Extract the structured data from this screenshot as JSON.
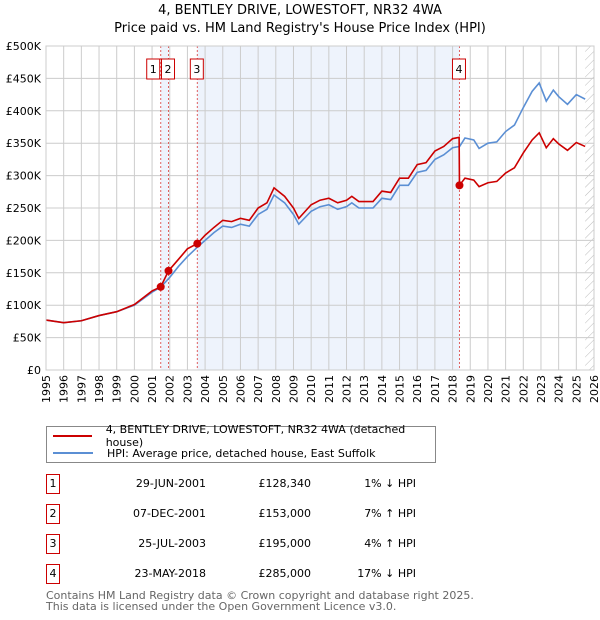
{
  "title": "4, BENTLEY DRIVE, LOWESTOFT, NR32 4WA",
  "subtitle": "Price paid vs. HM Land Registry's House Price Index (HPI)",
  "legend": {
    "property": "4, BENTLEY DRIVE, LOWESTOFT, NR32 4WA (detached house)",
    "hpi": "HPI: Average price, detached house, East Suffolk"
  },
  "colors": {
    "property": "#cc0000",
    "hpi": "#5b8fd4",
    "shade": "#eef3fc"
  },
  "sales": [
    {
      "num": "1",
      "date": "29-JUN-2001",
      "price": "£128,340",
      "hpi": "1% ↓ HPI",
      "x": 2001.49,
      "y": 128.34
    },
    {
      "num": "2",
      "date": "07-DEC-2001",
      "price": "£153,000",
      "hpi": "7% ↑ HPI",
      "x": 2001.93,
      "y": 153
    },
    {
      "num": "3",
      "date": "25-JUL-2003",
      "price": "£195,000",
      "hpi": "4% ↑ HPI",
      "x": 2003.56,
      "y": 195
    },
    {
      "num": "4",
      "date": "23-MAY-2018",
      "price": "£285,000",
      "hpi": "17% ↓ HPI",
      "x": 2018.39,
      "y": 285
    }
  ],
  "footer": [
    "Contains HM Land Registry data © Crown copyright and database right 2025.",
    "This data is licensed under the Open Government Licence v3.0."
  ],
  "chart_data": {
    "type": "line",
    "xlim": [
      1995,
      2026
    ],
    "ylim": [
      0,
      500
    ],
    "yticks": [
      0,
      50,
      100,
      150,
      200,
      250,
      300,
      350,
      400,
      450,
      500
    ],
    "ytick_labels": [
      "£0",
      "£50K",
      "£100K",
      "£150K",
      "£200K",
      "£250K",
      "£300K",
      "£350K",
      "£400K",
      "£450K",
      "£500K"
    ],
    "xticks": [
      1995,
      1996,
      1997,
      1998,
      1999,
      2000,
      2001,
      2002,
      2003,
      2004,
      2005,
      2006,
      2007,
      2008,
      2009,
      2010,
      2011,
      2012,
      2013,
      2014,
      2015,
      2016,
      2017,
      2018,
      2019,
      2020,
      2021,
      2022,
      2023,
      2024,
      2025,
      2026
    ],
    "grid": true,
    "forecast_hatch_from": 2025.5,
    "series": [
      {
        "name": "HPI: Average price, detached house, East Suffolk",
        "points": [
          [
            1995,
            77
          ],
          [
            1996,
            73
          ],
          [
            1997,
            76
          ],
          [
            1998,
            84
          ],
          [
            1999,
            90
          ],
          [
            2000,
            100
          ],
          [
            2001,
            120
          ],
          [
            2001.5,
            128
          ],
          [
            2002,
            143
          ],
          [
            2002.5,
            160
          ],
          [
            2003,
            175
          ],
          [
            2003.5,
            188
          ],
          [
            2004,
            200
          ],
          [
            2004.5,
            212
          ],
          [
            2005,
            222
          ],
          [
            2005.5,
            220
          ],
          [
            2006,
            225
          ],
          [
            2006.5,
            222
          ],
          [
            2007,
            240
          ],
          [
            2007.5,
            248
          ],
          [
            2007.9,
            270
          ],
          [
            2008.5,
            258
          ],
          [
            2009,
            240
          ],
          [
            2009.3,
            225
          ],
          [
            2010,
            245
          ],
          [
            2010.5,
            252
          ],
          [
            2011,
            255
          ],
          [
            2011.5,
            248
          ],
          [
            2012,
            252
          ],
          [
            2012.3,
            258
          ],
          [
            2012.7,
            250
          ],
          [
            2013.5,
            250
          ],
          [
            2014,
            265
          ],
          [
            2014.5,
            263
          ],
          [
            2015,
            285
          ],
          [
            2015.5,
            285
          ],
          [
            2016,
            305
          ],
          [
            2016.5,
            308
          ],
          [
            2017,
            325
          ],
          [
            2017.5,
            332
          ],
          [
            2018,
            343
          ],
          [
            2018.4,
            345
          ],
          [
            2018.7,
            358
          ],
          [
            2019.2,
            355
          ],
          [
            2019.5,
            342
          ],
          [
            2020,
            350
          ],
          [
            2020.5,
            352
          ],
          [
            2021,
            368
          ],
          [
            2021.5,
            378
          ],
          [
            2022,
            405
          ],
          [
            2022.5,
            430
          ],
          [
            2022.9,
            443
          ],
          [
            2023.3,
            415
          ],
          [
            2023.7,
            432
          ],
          [
            2024,
            422
          ],
          [
            2024.5,
            410
          ],
          [
            2025,
            425
          ],
          [
            2025.5,
            418
          ]
        ]
      },
      {
        "name": "4, BENTLEY DRIVE, LOWESTOFT, NR32 4WA (detached house)",
        "points": [
          [
            1995,
            77
          ],
          [
            1996,
            73
          ],
          [
            1997,
            76
          ],
          [
            1998,
            84
          ],
          [
            1999,
            90
          ],
          [
            2000,
            101
          ],
          [
            2001,
            122
          ],
          [
            2001.49,
            128.3
          ],
          [
            2001.93,
            153
          ],
          [
            2002.5,
            171
          ],
          [
            2003,
            187
          ],
          [
            2003.56,
            195
          ],
          [
            2004,
            208
          ],
          [
            2004.5,
            220
          ],
          [
            2005,
            231
          ],
          [
            2005.5,
            229
          ],
          [
            2006,
            234
          ],
          [
            2006.5,
            231
          ],
          [
            2007,
            250
          ],
          [
            2007.5,
            258
          ],
          [
            2007.9,
            281
          ],
          [
            2008.5,
            268
          ],
          [
            2009,
            250
          ],
          [
            2009.3,
            234
          ],
          [
            2010,
            255
          ],
          [
            2010.5,
            262
          ],
          [
            2011,
            265
          ],
          [
            2011.5,
            258
          ],
          [
            2012,
            262
          ],
          [
            2012.3,
            268
          ],
          [
            2012.7,
            260
          ],
          [
            2013.5,
            260
          ],
          [
            2014,
            276
          ],
          [
            2014.5,
            274
          ],
          [
            2015,
            296
          ],
          [
            2015.5,
            296
          ],
          [
            2016,
            317
          ],
          [
            2016.5,
            320
          ],
          [
            2017,
            338
          ],
          [
            2017.5,
            345
          ],
          [
            2018,
            357
          ],
          [
            2018.37,
            359
          ],
          [
            2018.39,
            285
          ],
          [
            2018.7,
            296
          ],
          [
            2019.2,
            293
          ],
          [
            2019.5,
            283
          ],
          [
            2020,
            289
          ],
          [
            2020.5,
            291
          ],
          [
            2021,
            304
          ],
          [
            2021.5,
            312
          ],
          [
            2022,
            335
          ],
          [
            2022.5,
            355
          ],
          [
            2022.9,
            366
          ],
          [
            2023.3,
            343
          ],
          [
            2023.7,
            357
          ],
          [
            2024,
            349
          ],
          [
            2024.5,
            339
          ],
          [
            2025,
            351
          ],
          [
            2025.5,
            345
          ]
        ]
      }
    ]
  }
}
